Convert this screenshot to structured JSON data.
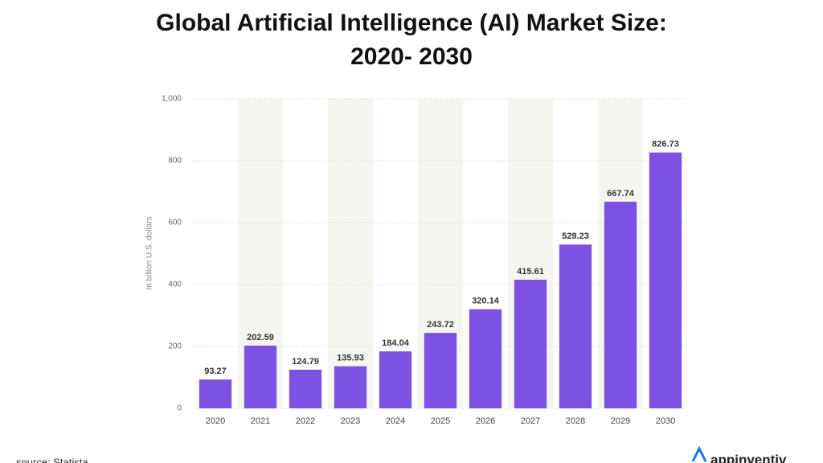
{
  "chart_data": {
    "type": "bar",
    "title": "Global Artificial Intelligence (AI) Market Size: 2020- 2030",
    "y_label": "In billion U.S. dollars",
    "categories": [
      "2020",
      "2021",
      "2022",
      "2023",
      "2024",
      "2025",
      "2026",
      "2027",
      "2028",
      "2029",
      "2030"
    ],
    "values": [
      93.27,
      202.59,
      124.79,
      135.93,
      184.04,
      243.72,
      320.14,
      415.61,
      529.23,
      667.74,
      826.73
    ],
    "color": "#7b52e1",
    "ylim": [
      0,
      1000
    ],
    "yticks": [
      0,
      200,
      400,
      600,
      800,
      {
        "value": 1000,
        "label": "1,000"
      }
    ],
    "grid": true,
    "source": "source: Statista"
  },
  "brand": "appinventiv"
}
